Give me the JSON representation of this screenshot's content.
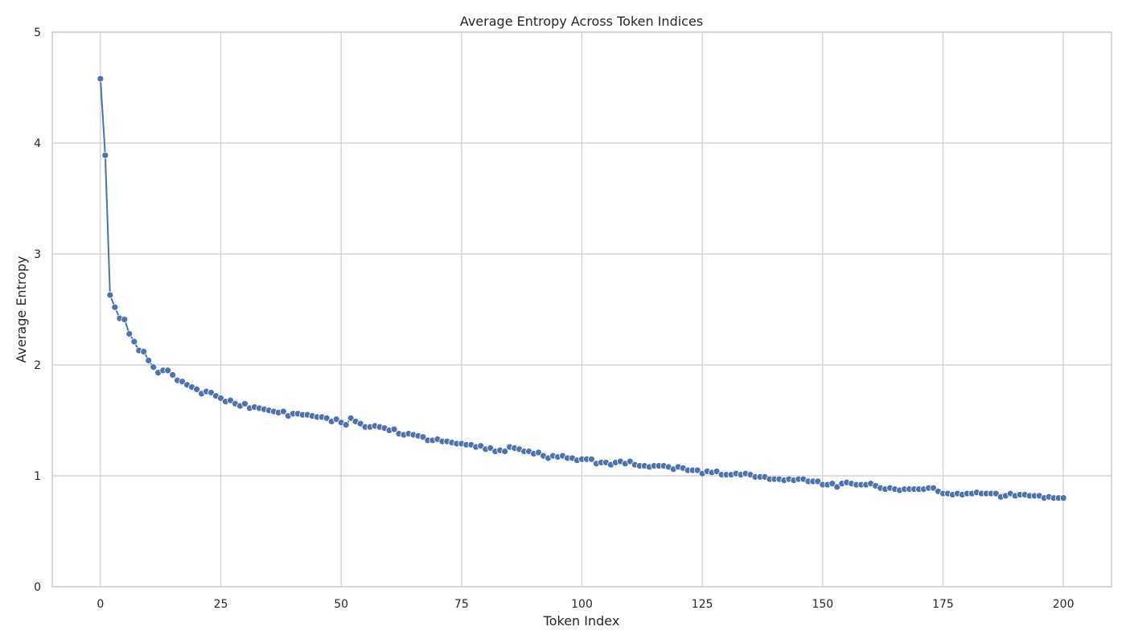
{
  "chart_data": {
    "type": "line",
    "title": "Average Entropy Across Token Indices",
    "xlabel": "Token Index",
    "ylabel": "Average Entropy",
    "xlim": [
      -10,
      210
    ],
    "ylim": [
      0,
      5
    ],
    "xticks": [
      0,
      25,
      50,
      75,
      100,
      125,
      150,
      175,
      200
    ],
    "yticks": [
      0,
      1,
      2,
      3,
      4,
      5
    ],
    "grid": true,
    "legend": "none",
    "color": "#4c72b0",
    "marker": "circle",
    "x_start": 0,
    "x_step": 1,
    "series": [
      {
        "values": [
          4.58,
          3.89,
          2.63,
          2.52,
          2.42,
          2.41,
          2.28,
          2.21,
          2.13,
          2.12,
          2.04,
          1.98,
          1.93,
          1.95,
          1.95,
          1.91,
          1.86,
          1.85,
          1.82,
          1.8,
          1.78,
          1.74,
          1.76,
          1.75,
          1.72,
          1.7,
          1.67,
          1.68,
          1.65,
          1.63,
          1.65,
          1.61,
          1.62,
          1.61,
          1.6,
          1.59,
          1.58,
          1.57,
          1.58,
          1.54,
          1.56,
          1.56,
          1.55,
          1.55,
          1.54,
          1.53,
          1.53,
          1.52,
          1.49,
          1.51,
          1.48,
          1.46,
          1.52,
          1.49,
          1.47,
          1.44,
          1.44,
          1.45,
          1.44,
          1.43,
          1.41,
          1.42,
          1.38,
          1.37,
          1.38,
          1.37,
          1.36,
          1.35,
          1.32,
          1.32,
          1.33,
          1.31,
          1.31,
          1.3,
          1.29,
          1.29,
          1.28,
          1.28,
          1.26,
          1.27,
          1.24,
          1.25,
          1.22,
          1.23,
          1.22,
          1.26,
          1.25,
          1.24,
          1.22,
          1.22,
          1.2,
          1.21,
          1.18,
          1.16,
          1.18,
          1.17,
          1.18,
          1.16,
          1.16,
          1.14,
          1.15,
          1.15,
          1.15,
          1.11,
          1.12,
          1.12,
          1.1,
          1.12,
          1.13,
          1.11,
          1.13,
          1.1,
          1.09,
          1.09,
          1.08,
          1.09,
          1.09,
          1.09,
          1.08,
          1.06,
          1.08,
          1.07,
          1.05,
          1.05,
          1.05,
          1.02,
          1.04,
          1.03,
          1.04,
          1.01,
          1.01,
          1.01,
          1.02,
          1.01,
          1.02,
          1.01,
          0.99,
          0.99,
          0.99,
          0.97,
          0.97,
          0.97,
          0.96,
          0.97,
          0.96,
          0.97,
          0.97,
          0.95,
          0.95,
          0.95,
          0.92,
          0.92,
          0.93,
          0.9,
          0.93,
          0.94,
          0.93,
          0.92,
          0.92,
          0.92,
          0.93,
          0.91,
          0.89,
          0.88,
          0.89,
          0.88,
          0.87,
          0.88,
          0.88,
          0.88,
          0.88,
          0.88,
          0.89,
          0.89,
          0.86,
          0.84,
          0.84,
          0.83,
          0.84,
          0.83,
          0.84,
          0.84,
          0.85,
          0.84,
          0.84,
          0.84,
          0.84,
          0.81,
          0.82,
          0.84,
          0.82,
          0.83,
          0.83,
          0.82,
          0.82,
          0.82,
          0.8,
          0.81,
          0.8,
          0.8,
          0.8
        ]
      }
    ]
  }
}
